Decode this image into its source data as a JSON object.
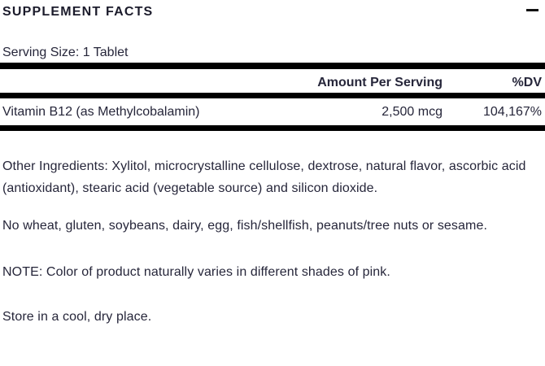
{
  "accordion": {
    "title": "SUPPLEMENT FACTS",
    "toggle_icon": "minus-icon",
    "state": "expanded"
  },
  "supplement_facts": {
    "serving_size": "Serving Size: 1 Tablet",
    "columns": {
      "amount": "Amount Per Serving",
      "dv": "%DV"
    },
    "rows": [
      {
        "name": "Vitamin B12 (as Methylcobalamin)",
        "amount": "2,500 mcg",
        "dv": "104,167%"
      }
    ],
    "other_ingredients": "Other Ingredients: Xylitol, microcrystalline cellulose, dextrose, natural flavor, ascorbic acid (antioxidant), stearic acid (vegetable source) and silicon dioxide.",
    "allergen_statement": "No wheat, gluten, soybeans, dairy, egg, fish/shellfish, peanuts/tree nuts or sesame.",
    "note": "NOTE: Color of product naturally varies in different shades of pink.",
    "storage": "Store in a cool, dry place."
  },
  "colors": {
    "text": "#26263a",
    "title": "#1b1b2b",
    "divider_bar": "#000000",
    "background": "#ffffff"
  }
}
